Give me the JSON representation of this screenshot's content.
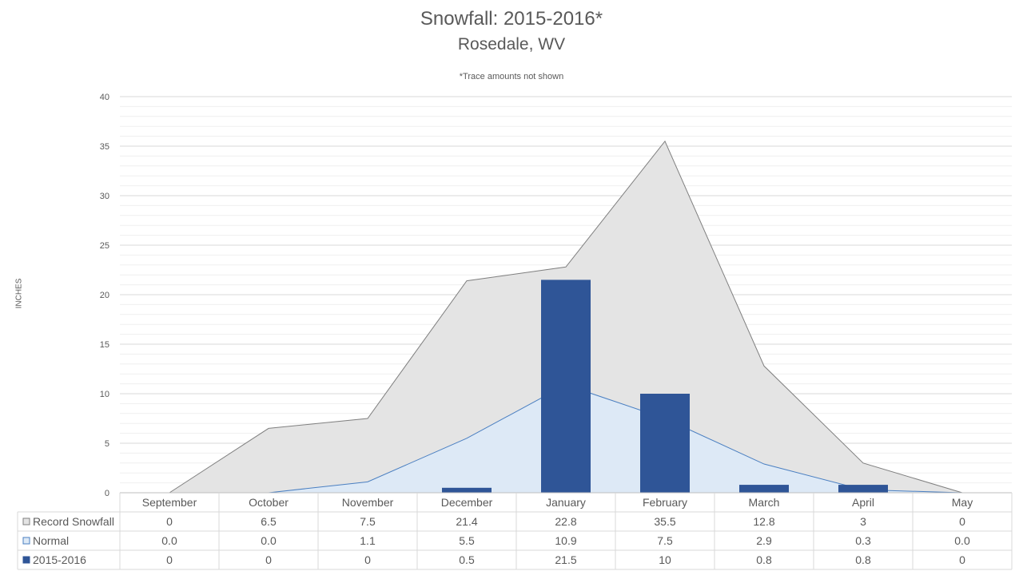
{
  "title": "Snowfall: 2015-2016*",
  "subtitle": "Rosedale, WV",
  "note": "*Trace amounts not shown",
  "ylabel": "INCHES",
  "colors": {
    "record_fill": "#e4e4e4",
    "record_line": "#7f7f7f",
    "normal_fill": "#dde9f6",
    "normal_line": "#4a7fc1",
    "bars": "#2f5597",
    "grid": "#d9d9d9",
    "grid_minor": "#efefef"
  },
  "chart_data": {
    "type": "area",
    "categories": [
      "September",
      "October",
      "November",
      "December",
      "January",
      "February",
      "March",
      "April",
      "May"
    ],
    "ylim": [
      0,
      40
    ],
    "yticks": [
      0,
      5,
      10,
      15,
      20,
      25,
      30,
      35,
      40
    ],
    "series": [
      {
        "name": "Record Snowfall",
        "type": "area",
        "values": [
          0,
          6.5,
          7.5,
          21.4,
          22.8,
          35.5,
          12.8,
          3,
          0
        ],
        "labels": [
          "0",
          "6.5",
          "7.5",
          "21.4",
          "22.8",
          "35.5",
          "12.8",
          "3",
          "0"
        ]
      },
      {
        "name": "Normal",
        "type": "area",
        "values": [
          0.0,
          0.0,
          1.1,
          5.5,
          10.9,
          7.5,
          2.9,
          0.3,
          0.0
        ],
        "labels": [
          "0.0",
          "0.0",
          "1.1",
          "5.5",
          "10.9",
          "7.5",
          "2.9",
          "0.3",
          "0.0"
        ]
      },
      {
        "name": "2015-2016",
        "type": "bar",
        "values": [
          0,
          0,
          0,
          0.5,
          21.5,
          10,
          0.8,
          0.8,
          0
        ],
        "labels": [
          "0",
          "0",
          "0",
          "0.5",
          "21.5",
          "10",
          "0.8",
          "0.8",
          "0"
        ]
      }
    ],
    "grid": true,
    "legend": "data-table"
  }
}
